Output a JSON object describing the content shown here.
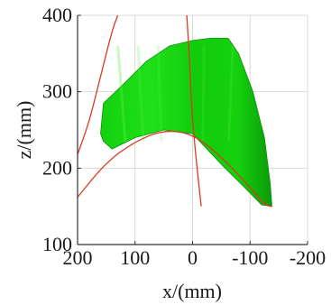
{
  "chart_data": {
    "type": "line",
    "title": "",
    "xlabel": "x/(mm)",
    "ylabel": "z/(mm)",
    "xlim": [
      200,
      -200
    ],
    "ylim": [
      100,
      400
    ],
    "x_reversed": true,
    "grid": true,
    "x_ticks": [
      200,
      100,
      0,
      -100,
      -200
    ],
    "x_tick_labels": [
      "200",
      "100",
      "0",
      "-100",
      "-200"
    ],
    "y_ticks": [
      100,
      200,
      300,
      400
    ],
    "y_tick_labels": [
      "100",
      "200",
      "300",
      "400"
    ],
    "colors": {
      "surface_fill": "#15d40f",
      "surface_highlight": "#5cf04e",
      "surface_shadow": "#0a8f07",
      "curve": "#d93a1e",
      "grid": "#d9d9d9",
      "axis": "#333333"
    },
    "series": [
      {
        "kind": "surface",
        "outline": [
          {
            "x": 160,
            "z": 245
          },
          {
            "x": 155,
            "z": 285
          },
          {
            "x": 120,
            "z": 310
          },
          {
            "x": 80,
            "z": 340
          },
          {
            "x": 40,
            "z": 360
          },
          {
            "x": 0,
            "z": 367
          },
          {
            "x": -30,
            "z": 370
          },
          {
            "x": -62,
            "z": 370
          },
          {
            "x": -80,
            "z": 350
          },
          {
            "x": -105,
            "z": 300
          },
          {
            "x": -125,
            "z": 240
          },
          {
            "x": -135,
            "z": 180
          },
          {
            "x": -138,
            "z": 150
          },
          {
            "x": -120,
            "z": 152
          },
          {
            "x": -90,
            "z": 175
          },
          {
            "x": -50,
            "z": 205
          },
          {
            "x": 0,
            "z": 245
          },
          {
            "x": 50,
            "z": 250
          },
          {
            "x": 100,
            "z": 240
          },
          {
            "x": 140,
            "z": 225
          },
          {
            "x": 155,
            "z": 235
          }
        ]
      },
      {
        "kind": "curve",
        "points": [
          {
            "x": 200,
            "z": 162
          },
          {
            "x": 150,
            "z": 208
          },
          {
            "x": 100,
            "z": 235
          },
          {
            "x": 50,
            "z": 250
          },
          {
            "x": 0,
            "z": 245
          },
          {
            "x": -50,
            "z": 215
          },
          {
            "x": -100,
            "z": 175
          },
          {
            "x": -125,
            "z": 152
          },
          {
            "x": -138,
            "z": 150
          }
        ]
      },
      {
        "kind": "curve",
        "points": [
          {
            "x": 200,
            "z": 218
          },
          {
            "x": 180,
            "z": 260
          },
          {
            "x": 160,
            "z": 320
          },
          {
            "x": 140,
            "z": 380
          },
          {
            "x": 130,
            "z": 400
          }
        ]
      },
      {
        "kind": "curve",
        "points": [
          {
            "x": 10,
            "z": 400
          },
          {
            "x": 5,
            "z": 340
          },
          {
            "x": 2,
            "z": 280
          },
          {
            "x": -5,
            "z": 220
          },
          {
            "x": -15,
            "z": 150
          }
        ]
      }
    ]
  }
}
